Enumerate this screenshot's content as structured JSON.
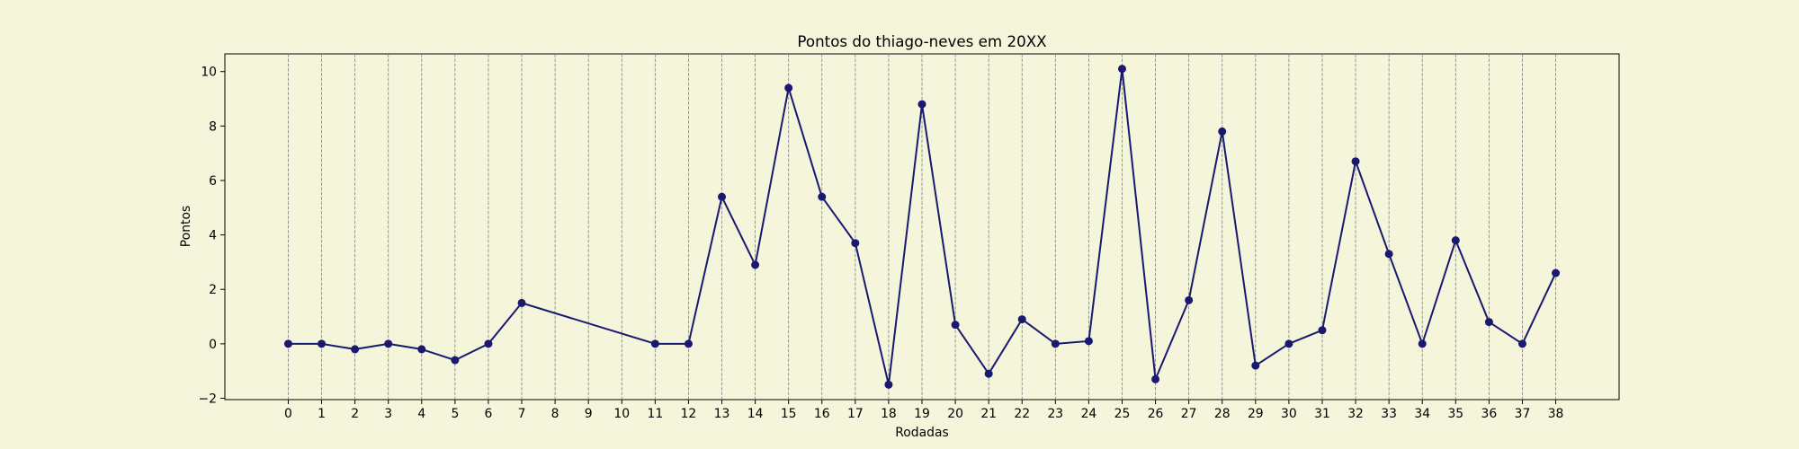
{
  "chart_data": {
    "type": "line",
    "title": "Pontos do thiago-neves em 20XX",
    "xlabel": "Rodadas",
    "ylabel": "Pontos",
    "x_ticks": [
      0,
      1,
      2,
      3,
      4,
      5,
      6,
      7,
      8,
      9,
      10,
      11,
      12,
      13,
      14,
      15,
      16,
      17,
      18,
      19,
      20,
      21,
      22,
      23,
      24,
      25,
      26,
      27,
      28,
      29,
      30,
      31,
      32,
      33,
      34,
      35,
      36,
      37,
      38
    ],
    "y_ticks": [
      -2,
      0,
      2,
      4,
      6,
      8,
      10
    ],
    "xlim": [
      -1.9,
      39.9
    ],
    "ylim": [
      -2.05,
      10.65
    ],
    "grid": "vertical dashed lines at each round",
    "series": [
      {
        "x": [
          0,
          1,
          2,
          3,
          4,
          5,
          6,
          7,
          11,
          12,
          13,
          14,
          15,
          16,
          17,
          18,
          19,
          20,
          21,
          22,
          23,
          24,
          25,
          26,
          27,
          28,
          29,
          30,
          31,
          32,
          33,
          34,
          35,
          36,
          37,
          38
        ],
        "values": [
          0,
          0,
          -0.2,
          0,
          -0.2,
          -0.6,
          0,
          1.5,
          0,
          0,
          5.4,
          2.9,
          9.4,
          5.4,
          3.7,
          -1.5,
          8.8,
          0.7,
          -1.1,
          0.9,
          0,
          0.1,
          10.1,
          -1.3,
          1.6,
          7.8,
          -0.8,
          0,
          0.5,
          6.7,
          3.3,
          0,
          3.8,
          0.8,
          0,
          2.6
        ]
      }
    ],
    "colors": {
      "background": "#f5f5dc",
      "line": "#191970",
      "grid": "#808080",
      "axes": "#000000"
    }
  }
}
